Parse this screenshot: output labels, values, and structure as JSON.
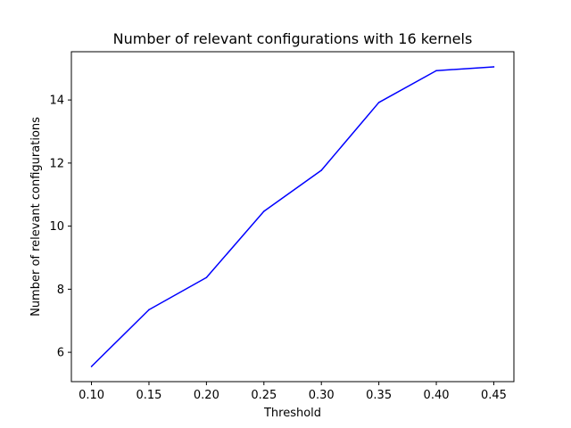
{
  "chart_data": {
    "type": "line",
    "title": "Number of relevant configurations with 16 kernels",
    "xlabel": "Threshold",
    "ylabel": "Number of relevant configurations",
    "x": [
      0.1,
      0.15,
      0.2,
      0.25,
      0.3,
      0.35,
      0.4,
      0.45
    ],
    "series": [
      {
        "values": [
          5.55,
          7.35,
          8.37,
          10.47,
          11.77,
          13.92,
          14.93,
          15.05
        ],
        "color": "#0000ff"
      }
    ],
    "xlim": [
      0.0825,
      0.4675
    ],
    "ylim": [
      5.07,
      15.53
    ],
    "xticks": [
      0.1,
      0.15,
      0.2,
      0.25,
      0.3,
      0.35,
      0.4,
      0.45
    ],
    "xtick_labels": [
      "0.10",
      "0.15",
      "0.20",
      "0.25",
      "0.30",
      "0.35",
      "0.40",
      "0.45"
    ],
    "yticks": [
      6,
      8,
      10,
      12,
      14
    ],
    "ytick_labels": [
      "6",
      "8",
      "10",
      "12",
      "14"
    ],
    "grid": false,
    "legend": "none"
  }
}
